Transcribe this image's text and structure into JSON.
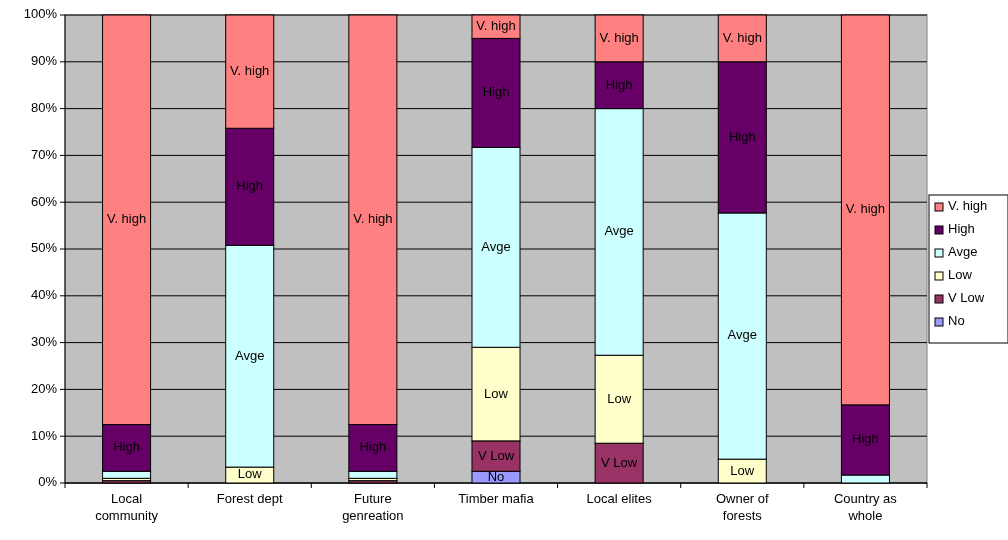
{
  "chart_data": {
    "type": "bar",
    "stacked": true,
    "categories": [
      "Local community",
      "Forest dept",
      "Future genreation",
      "Timber mafia",
      "Local elites",
      "Owner of forests",
      "Country as whole"
    ],
    "series": [
      {
        "name": "No",
        "color": "#9999ff",
        "values": [
          0,
          0,
          0,
          2.5,
          0,
          0,
          0
        ]
      },
      {
        "name": "V Low",
        "color": "#993366",
        "values": [
          0.5,
          0,
          0.5,
          6.5,
          8.5,
          0,
          0
        ]
      },
      {
        "name": "Low",
        "color": "#ffffcc",
        "values": [
          0.5,
          3.4,
          0.5,
          20,
          18.8,
          5.1,
          0
        ]
      },
      {
        "name": "Avge",
        "color": "#ccffff",
        "values": [
          1.5,
          47.4,
          1.5,
          42.7,
          52.7,
          52.6,
          1.7
        ]
      },
      {
        "name": "High",
        "color": "#660066",
        "values": [
          10,
          25,
          10,
          23.3,
          10,
          32.3,
          15
        ]
      },
      {
        "name": "V. high",
        "color": "#ff8080",
        "values": [
          87.5,
          24.2,
          87.5,
          5,
          10,
          10,
          83.3
        ]
      }
    ],
    "ylim": [
      0,
      100
    ],
    "yticks": [
      {
        "value": 0,
        "label": "0%"
      },
      {
        "value": 10,
        "label": "10%"
      },
      {
        "value": 20,
        "label": "20%"
      },
      {
        "value": 30,
        "label": "30%"
      },
      {
        "value": 40,
        "label": "40%"
      },
      {
        "value": 50,
        "label": "50%"
      },
      {
        "value": 60,
        "label": "60%"
      },
      {
        "value": 70,
        "label": "70%"
      },
      {
        "value": 80,
        "label": "80%"
      },
      {
        "value": 90,
        "label": "90%"
      },
      {
        "value": 100,
        "label": "100%"
      }
    ],
    "grid": "y",
    "legend": "right"
  }
}
